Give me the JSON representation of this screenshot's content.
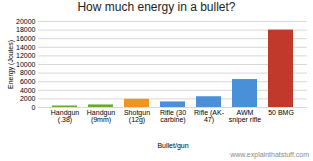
{
  "chart_data": {
    "type": "bar",
    "title": "How much energy in a bullet?",
    "xlabel": "Bullet/gun",
    "ylabel": "Energy (Joules)",
    "categories": [
      "Handgun (.38)",
      "Handgun (9mm)",
      "Shotgun (12g)",
      "Rifle (30 carbine)",
      "Rifle (AK-47)",
      "AWM sniper rifle",
      "50 BMG"
    ],
    "values": [
      350,
      600,
      1900,
      1300,
      2500,
      6500,
      18000
    ],
    "colors": [
      "#6aaa2a",
      "#6aaa2a",
      "#f0941e",
      "#4a90d9",
      "#4a90d9",
      "#4a90d9",
      "#c0392b"
    ],
    "ylim": [
      0,
      20000
    ],
    "yticks": [
      0,
      2000,
      4000,
      6000,
      8000,
      10000,
      12000,
      14000,
      16000,
      18000,
      20000
    ],
    "grid": true,
    "annotations": [
      "www.explainthatstuff.com"
    ]
  }
}
